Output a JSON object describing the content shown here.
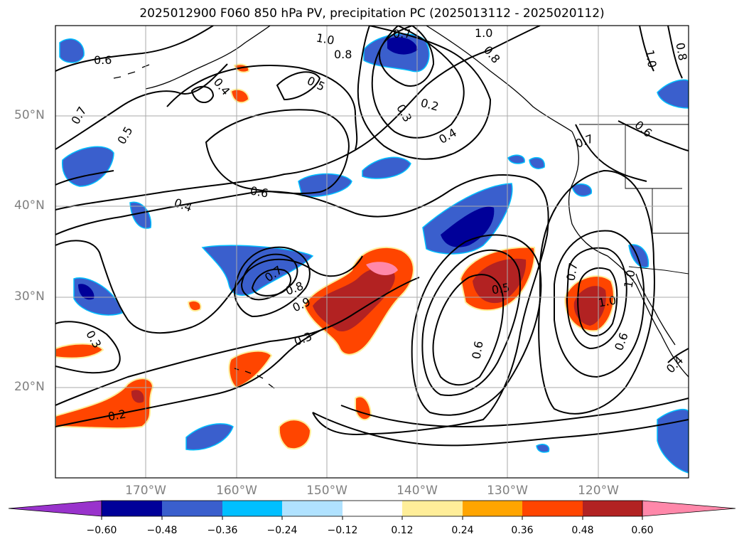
{
  "title": "2025012900 F060 850 hPa PV, precipitation PC (2025013112 - 2025020112)",
  "lat_labels": [
    "50°N",
    "40°N",
    "30°N",
    "20°N"
  ],
  "lon_labels": [
    "170°W",
    "160°W",
    "150°W",
    "140°W",
    "130°W",
    "120°W"
  ],
  "colorbar": {
    "ticks": [
      "−0.60",
      "−0.48",
      "−0.36",
      "−0.24",
      "−0.12",
      "0.12",
      "0.24",
      "0.36",
      "0.48",
      "0.60"
    ],
    "colors": [
      "#9933cc",
      "#000099",
      "#3a5fcd",
      "#00bfff",
      "#b0e2ff",
      "#ffffff",
      "#ffee99",
      "#ffa500",
      "#ff4500",
      "#b22222",
      "#ff88aa"
    ]
  },
  "contour_labels": [
    "0.6",
    "0.4",
    "0.7",
    "0.5",
    "1.0",
    "0.8",
    "0.7",
    "0.8",
    "1.0",
    "0.5",
    "0.3",
    "0.2",
    "0.4",
    "0.6",
    "0.7",
    "0.6",
    "0.4",
    "0.7",
    "0.8",
    "0.9",
    "0.3",
    "0.3",
    "0.2",
    "0.5",
    "0.6",
    "0.7",
    "1.0",
    "1.0",
    "0.6",
    "0.4",
    "0.8",
    "1.0"
  ]
}
